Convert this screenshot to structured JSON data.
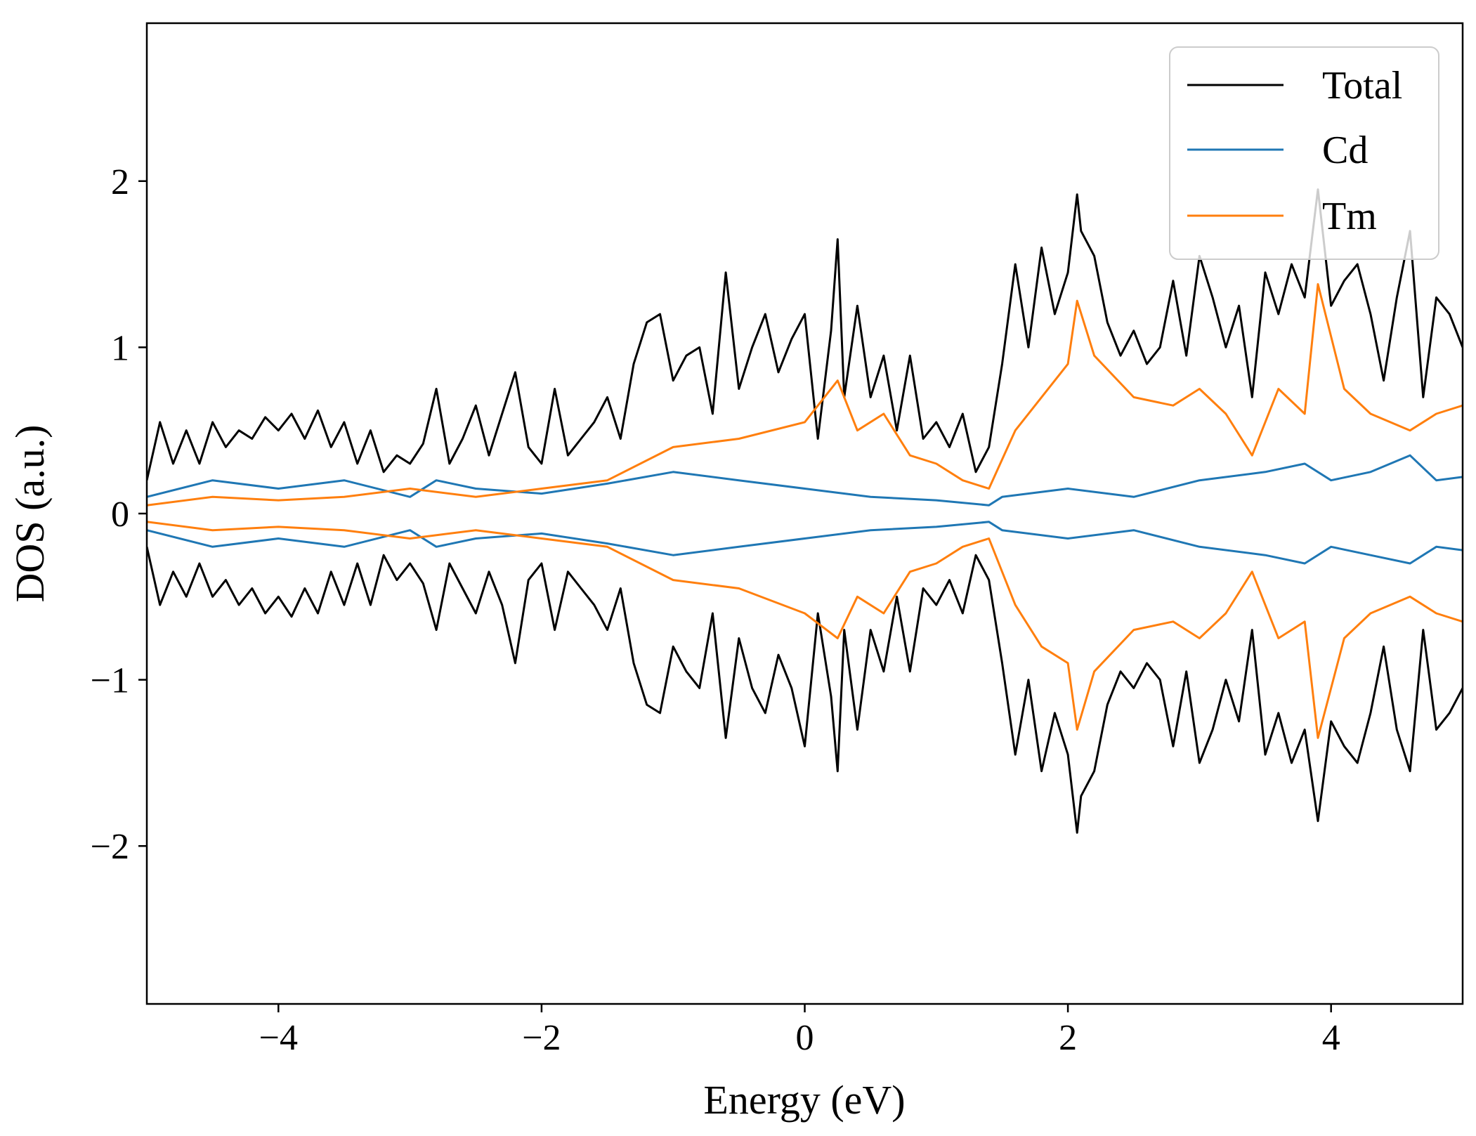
{
  "chart_data": {
    "type": "line",
    "title": "",
    "xlabel": "Energy (eV)",
    "ylabel": "DOS (a.u.)",
    "xlim": [
      -5,
      5
    ],
    "ylim": [
      -2.95,
      2.95
    ],
    "x_ticks": [
      -4,
      -2,
      0,
      2,
      4
    ],
    "x_tick_labels": [
      "−4",
      "−2",
      "0",
      "2",
      "4"
    ],
    "y_ticks": [
      -2,
      -1,
      0,
      1,
      2
    ],
    "y_tick_labels": [
      "−2",
      "−1",
      "0",
      "1",
      "2"
    ],
    "grid": false,
    "legend_position": "top-right",
    "spin_polarized": true,
    "series": [
      {
        "name": "Total",
        "color": "#000000",
        "x": [
          -5.0,
          -4.9,
          -4.8,
          -4.7,
          -4.6,
          -4.5,
          -4.4,
          -4.3,
          -4.2,
          -4.1,
          -4.0,
          -3.9,
          -3.8,
          -3.7,
          -3.6,
          -3.5,
          -3.4,
          -3.3,
          -3.2,
          -3.1,
          -3.0,
          -2.9,
          -2.8,
          -2.7,
          -2.6,
          -2.5,
          -2.4,
          -2.3,
          -2.2,
          -2.1,
          -2.0,
          -1.9,
          -1.8,
          -1.7,
          -1.6,
          -1.5,
          -1.4,
          -1.3,
          -1.2,
          -1.1,
          -1.0,
          -0.9,
          -0.8,
          -0.7,
          -0.6,
          -0.5,
          -0.4,
          -0.3,
          -0.2,
          -0.1,
          0.0,
          0.1,
          0.2,
          0.25,
          0.3,
          0.4,
          0.5,
          0.6,
          0.7,
          0.8,
          0.9,
          1.0,
          1.1,
          1.2,
          1.3,
          1.4,
          1.5,
          1.6,
          1.7,
          1.8,
          1.9,
          2.0,
          2.07,
          2.1,
          2.2,
          2.3,
          2.4,
          2.5,
          2.6,
          2.7,
          2.8,
          2.9,
          3.0,
          3.1,
          3.2,
          3.3,
          3.4,
          3.5,
          3.6,
          3.7,
          3.8,
          3.9,
          4.0,
          4.1,
          4.2,
          4.3,
          4.4,
          4.5,
          4.6,
          4.7,
          4.8,
          4.9,
          5.0
        ],
        "up": [
          0.2,
          0.55,
          0.3,
          0.5,
          0.3,
          0.55,
          0.4,
          0.5,
          0.45,
          0.58,
          0.5,
          0.6,
          0.45,
          0.62,
          0.4,
          0.55,
          0.3,
          0.5,
          0.25,
          0.35,
          0.3,
          0.42,
          0.75,
          0.3,
          0.45,
          0.65,
          0.35,
          0.6,
          0.85,
          0.4,
          0.3,
          0.75,
          0.35,
          0.45,
          0.55,
          0.7,
          0.45,
          0.9,
          1.15,
          1.2,
          0.8,
          0.95,
          1.0,
          0.6,
          1.45,
          0.75,
          1.0,
          1.2,
          0.85,
          1.05,
          1.2,
          0.45,
          1.1,
          1.65,
          0.7,
          1.25,
          0.7,
          0.95,
          0.5,
          0.95,
          0.45,
          0.55,
          0.4,
          0.6,
          0.25,
          0.4,
          0.9,
          1.5,
          1.0,
          1.6,
          1.2,
          1.45,
          1.92,
          1.7,
          1.55,
          1.15,
          0.95,
          1.1,
          0.9,
          1.0,
          1.4,
          0.95,
          1.55,
          1.3,
          1.0,
          1.25,
          0.7,
          1.45,
          1.2,
          1.5,
          1.3,
          1.95,
          1.25,
          1.4,
          1.5,
          1.2,
          0.8,
          1.3,
          1.7,
          0.7,
          1.3,
          1.2,
          1.0
        ],
        "down": [
          -0.2,
          -0.55,
          -0.35,
          -0.5,
          -0.3,
          -0.5,
          -0.4,
          -0.55,
          -0.45,
          -0.6,
          -0.5,
          -0.62,
          -0.45,
          -0.6,
          -0.35,
          -0.55,
          -0.3,
          -0.55,
          -0.25,
          -0.4,
          -0.3,
          -0.42,
          -0.7,
          -0.3,
          -0.45,
          -0.6,
          -0.35,
          -0.55,
          -0.9,
          -0.4,
          -0.3,
          -0.7,
          -0.35,
          -0.45,
          -0.55,
          -0.7,
          -0.45,
          -0.9,
          -1.15,
          -1.2,
          -0.8,
          -0.95,
          -1.05,
          -0.6,
          -1.35,
          -0.75,
          -1.05,
          -1.2,
          -0.85,
          -1.05,
          -1.4,
          -0.6,
          -1.1,
          -1.55,
          -0.7,
          -1.3,
          -0.7,
          -0.95,
          -0.5,
          -0.95,
          -0.45,
          -0.55,
          -0.4,
          -0.6,
          -0.25,
          -0.4,
          -0.9,
          -1.45,
          -1.0,
          -1.55,
          -1.2,
          -1.45,
          -1.92,
          -1.7,
          -1.55,
          -1.15,
          -0.95,
          -1.05,
          -0.9,
          -1.0,
          -1.4,
          -0.95,
          -1.5,
          -1.3,
          -1.0,
          -1.25,
          -0.7,
          -1.45,
          -1.2,
          -1.5,
          -1.3,
          -1.85,
          -1.25,
          -1.4,
          -1.5,
          -1.2,
          -0.8,
          -1.3,
          -1.55,
          -0.7,
          -1.3,
          -1.2,
          -1.05
        ]
      },
      {
        "name": "Cd",
        "color": "#1f77b4",
        "x": [
          -5.0,
          -4.5,
          -4.0,
          -3.5,
          -3.0,
          -2.8,
          -2.5,
          -2.0,
          -1.5,
          -1.0,
          -0.5,
          0.0,
          0.5,
          1.0,
          1.4,
          1.5,
          2.0,
          2.5,
          3.0,
          3.5,
          3.8,
          4.0,
          4.3,
          4.6,
          4.8,
          5.0
        ],
        "up": [
          0.1,
          0.2,
          0.15,
          0.2,
          0.1,
          0.2,
          0.15,
          0.12,
          0.18,
          0.25,
          0.2,
          0.15,
          0.1,
          0.08,
          0.05,
          0.1,
          0.15,
          0.1,
          0.2,
          0.25,
          0.3,
          0.2,
          0.25,
          0.35,
          0.2,
          0.22
        ],
        "down": [
          -0.1,
          -0.2,
          -0.15,
          -0.2,
          -0.1,
          -0.2,
          -0.15,
          -0.12,
          -0.18,
          -0.25,
          -0.2,
          -0.15,
          -0.1,
          -0.08,
          -0.05,
          -0.1,
          -0.15,
          -0.1,
          -0.2,
          -0.25,
          -0.3,
          -0.2,
          -0.25,
          -0.3,
          -0.2,
          -0.22
        ]
      },
      {
        "name": "Tm",
        "color": "#ff7f0e",
        "x": [
          -5.0,
          -4.5,
          -4.0,
          -3.5,
          -3.0,
          -2.5,
          -2.0,
          -1.5,
          -1.0,
          -0.5,
          0.0,
          0.25,
          0.4,
          0.6,
          0.8,
          1.0,
          1.2,
          1.4,
          1.6,
          1.8,
          2.0,
          2.07,
          2.2,
          2.5,
          2.8,
          3.0,
          3.2,
          3.4,
          3.6,
          3.8,
          3.9,
          4.1,
          4.3,
          4.6,
          4.8,
          5.0
        ],
        "up": [
          0.05,
          0.1,
          0.08,
          0.1,
          0.15,
          0.1,
          0.15,
          0.2,
          0.4,
          0.45,
          0.55,
          0.8,
          0.5,
          0.6,
          0.35,
          0.3,
          0.2,
          0.15,
          0.5,
          0.7,
          0.9,
          1.28,
          0.95,
          0.7,
          0.65,
          0.75,
          0.6,
          0.35,
          0.75,
          0.6,
          1.38,
          0.75,
          0.6,
          0.5,
          0.6,
          0.65
        ],
        "down": [
          -0.05,
          -0.1,
          -0.08,
          -0.1,
          -0.15,
          -0.1,
          -0.15,
          -0.2,
          -0.4,
          -0.45,
          -0.6,
          -0.75,
          -0.5,
          -0.6,
          -0.35,
          -0.3,
          -0.2,
          -0.15,
          -0.55,
          -0.8,
          -0.9,
          -1.3,
          -0.95,
          -0.7,
          -0.65,
          -0.75,
          -0.6,
          -0.35,
          -0.75,
          -0.65,
          -1.35,
          -0.75,
          -0.6,
          -0.5,
          -0.6,
          -0.65
        ]
      }
    ]
  }
}
